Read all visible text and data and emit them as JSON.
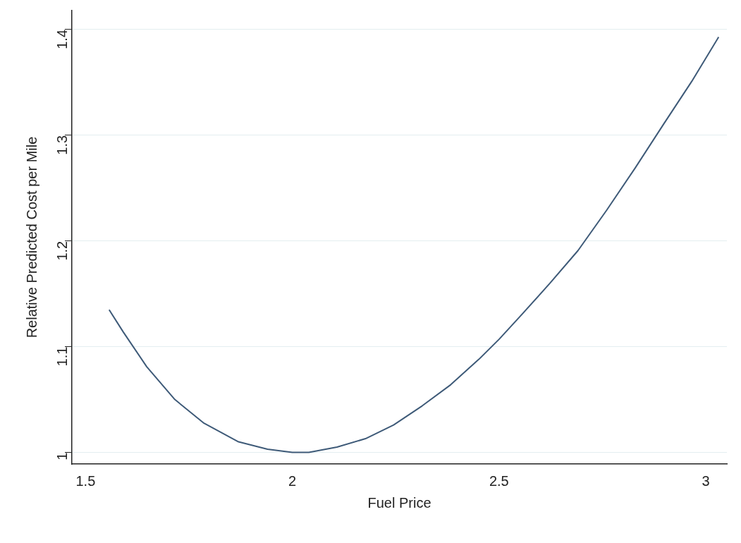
{
  "chart_data": {
    "type": "line",
    "xlabel": "Fuel Price",
    "ylabel": "Relative Predicted Cost per Mile",
    "x": [
      1.557,
      1.591,
      1.648,
      1.716,
      1.785,
      1.87,
      1.94,
      2.0,
      2.04,
      2.108,
      2.177,
      2.245,
      2.314,
      2.383,
      2.451,
      2.5,
      2.554,
      2.623,
      2.691,
      2.76,
      2.829,
      2.897,
      2.966,
      3.031
    ],
    "series": [
      {
        "color": "#3e5a78",
        "values": [
          1.135,
          1.114,
          1.081,
          1.05,
          1.028,
          1.01,
          1.003,
          1.0,
          1.0,
          1.005,
          1.013,
          1.026,
          1.044,
          1.064,
          1.088,
          1.107,
          1.13,
          1.16,
          1.191,
          1.229,
          1.269,
          1.31,
          1.351,
          1.393
        ]
      }
    ],
    "xlim": [
      1.467,
      3.051
    ],
    "ylim": [
      0.989,
      1.418
    ],
    "xticks": [
      1.5,
      2,
      2.5,
      3
    ],
    "yticks": [
      1,
      1.1,
      1.2,
      1.3,
      1.4
    ],
    "grid": "y",
    "marker": "none",
    "line_style": "solid",
    "legend": false
  }
}
